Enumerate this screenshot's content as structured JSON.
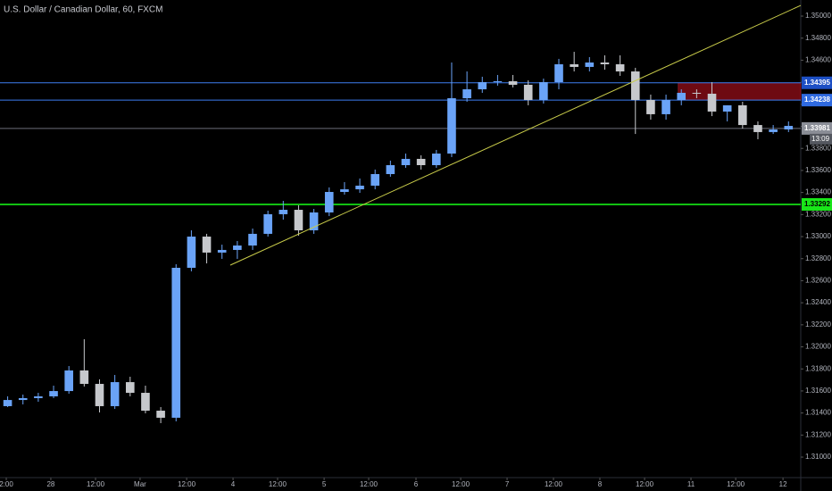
{
  "chart_data": {
    "type": "candlestick",
    "title": "U.S. Dollar / Canadian Dollar, 60, FXCM",
    "up_color": "#6aa3f7",
    "down_color": "#c6c8cc",
    "ylim": [
      1.30814,
      1.35146
    ],
    "xlim": [
      -0.5,
      51.8
    ],
    "yticks": [
      {
        "value": 1.35,
        "label": "1.35000"
      },
      {
        "value": 1.348,
        "label": "1.34800"
      },
      {
        "value": 1.346,
        "label": "1.34600"
      },
      {
        "value": 1.344,
        "label": "1.34400"
      },
      {
        "value": 1.342,
        "label": "1.34200"
      },
      {
        "value": 1.34,
        "label": "1.34000"
      },
      {
        "value": 1.338,
        "label": "1.33800"
      },
      {
        "value": 1.336,
        "label": "1.33600"
      },
      {
        "value": 1.334,
        "label": "1.33400"
      },
      {
        "value": 1.332,
        "label": "1.33200"
      },
      {
        "value": 1.33,
        "label": "1.33000"
      },
      {
        "value": 1.328,
        "label": "1.32800"
      },
      {
        "value": 1.326,
        "label": "1.32600"
      },
      {
        "value": 1.324,
        "label": "1.32400"
      },
      {
        "value": 1.322,
        "label": "1.32200"
      },
      {
        "value": 1.32,
        "label": "1.32000"
      },
      {
        "value": 1.318,
        "label": "1.31800"
      },
      {
        "value": 1.316,
        "label": "1.31600"
      },
      {
        "value": 1.314,
        "label": "1.31400"
      },
      {
        "value": 1.312,
        "label": "1.31200"
      },
      {
        "value": 1.31,
        "label": "1.31000"
      }
    ],
    "xticks": [
      {
        "value": -0.09,
        "label": "2:00"
      },
      {
        "value": 2.82,
        "label": "28"
      },
      {
        "value": 5.74,
        "label": "12:00"
      },
      {
        "value": 8.65,
        "label": "Mar"
      },
      {
        "value": 11.69,
        "label": "12:00"
      },
      {
        "value": 14.72,
        "label": "4"
      },
      {
        "value": 17.63,
        "label": "12:00"
      },
      {
        "value": 20.67,
        "label": "5"
      },
      {
        "value": 23.58,
        "label": "12:00"
      },
      {
        "value": 26.67,
        "label": "6"
      },
      {
        "value": 29.59,
        "label": "12:00"
      },
      {
        "value": 32.62,
        "label": "7"
      },
      {
        "value": 35.65,
        "label": "12:00"
      },
      {
        "value": 38.68,
        "label": "8"
      },
      {
        "value": 41.6,
        "label": "12:00"
      },
      {
        "value": 44.63,
        "label": "11"
      },
      {
        "value": 47.55,
        "label": "12:00"
      },
      {
        "value": 50.64,
        "label": "12"
      }
    ],
    "ohlc": [
      [
        1.31462,
        1.31551,
        1.31454,
        1.31518
      ],
      [
        1.31518,
        1.31567,
        1.31478,
        1.31535
      ],
      [
        1.31535,
        1.31583,
        1.31502,
        1.31551
      ],
      [
        1.31551,
        1.31648,
        1.31535,
        1.31599
      ],
      [
        1.31599,
        1.31826,
        1.31575,
        1.31786
      ],
      [
        1.31786,
        1.32069,
        1.3164,
        1.31664
      ],
      [
        1.31664,
        1.31705,
        1.31405,
        1.31462
      ],
      [
        1.31462,
        1.31745,
        1.31437,
        1.3168
      ],
      [
        1.3168,
        1.31729,
        1.31551,
        1.31583
      ],
      [
        1.31583,
        1.31648,
        1.31397,
        1.31421
      ],
      [
        1.31421,
        1.31454,
        1.31308,
        1.31357
      ],
      [
        1.31357,
        1.32749,
        1.31324,
        1.32717
      ],
      [
        1.32717,
        1.33057,
        1.32685,
        1.33
      ],
      [
        1.33,
        1.33025,
        1.32757,
        1.32855
      ],
      [
        1.32855,
        1.32927,
        1.32798,
        1.32879
      ],
      [
        1.32879,
        1.3296,
        1.32798,
        1.32919
      ],
      [
        1.32919,
        1.33073,
        1.32879,
        1.33025
      ],
      [
        1.33025,
        1.33235,
        1.33,
        1.33203
      ],
      [
        1.33203,
        1.33324,
        1.33154,
        1.33243
      ],
      [
        1.33243,
        1.33284,
        1.33008,
        1.33057
      ],
      [
        1.33057,
        1.33251,
        1.33025,
        1.33219
      ],
      [
        1.33219,
        1.33446,
        1.33186,
        1.33405
      ],
      [
        1.33405,
        1.33494,
        1.33381,
        1.33429
      ],
      [
        1.33429,
        1.33527,
        1.33397,
        1.33462
      ],
      [
        1.33462,
        1.33608,
        1.33429,
        1.33567
      ],
      [
        1.33567,
        1.33689,
        1.33543,
        1.33648
      ],
      [
        1.33648,
        1.33753,
        1.33624,
        1.33705
      ],
      [
        1.33705,
        1.33737,
        1.33608,
        1.33648
      ],
      [
        1.33648,
        1.33786,
        1.33624,
        1.33753
      ],
      [
        1.33753,
        1.34579,
        1.33721,
        1.34255
      ],
      [
        1.34255,
        1.34498,
        1.34223,
        1.34336
      ],
      [
        1.34336,
        1.3445,
        1.34304,
        1.34401
      ],
      [
        1.34401,
        1.34466,
        1.34369,
        1.34409
      ],
      [
        1.34409,
        1.34466,
        1.34353,
        1.34377
      ],
      [
        1.34377,
        1.34417,
        1.34191,
        1.34239
      ],
      [
        1.34239,
        1.34433,
        1.34207,
        1.34401
      ],
      [
        1.34401,
        1.34612,
        1.34336,
        1.34563
      ],
      [
        1.34563,
        1.34676,
        1.34498,
        1.34539
      ],
      [
        1.34539,
        1.34628,
        1.34498,
        1.34579
      ],
      [
        1.34579,
        1.34644,
        1.34514,
        1.34563
      ],
      [
        1.34563,
        1.34644,
        1.34458,
        1.34498
      ],
      [
        1.34498,
        1.34531,
        1.33931,
        1.34239
      ],
      [
        1.34239,
        1.34288,
        1.34061,
        1.3411
      ],
      [
        1.3411,
        1.34288,
        1.34061,
        1.34239
      ],
      [
        1.34239,
        1.34336,
        1.34191,
        1.34304
      ],
      [
        1.34304,
        1.34336,
        1.34255,
        1.34296
      ],
      [
        1.34296,
        1.34401,
        1.34093,
        1.34134
      ],
      [
        1.34134,
        1.34191,
        1.34045,
        1.34191
      ],
      [
        1.34191,
        1.34223,
        1.3398,
        1.34012
      ],
      [
        1.34012,
        1.34045,
        1.33883,
        1.33948
      ],
      [
        1.33948,
        1.34012,
        1.33931,
        1.33972
      ],
      [
        1.33972,
        1.34045,
        1.33948,
        1.34004
      ]
    ],
    "levels": [
      {
        "value": 1.34395,
        "color": "#3d7df0",
        "tag_color": "#1d4fc4"
      },
      {
        "value": 1.34238,
        "color": "#3d7df0",
        "tag_color": "#2f6ae0"
      },
      {
        "value": 1.33981,
        "color": "#6b6e78",
        "tag_color": "#8a8d96"
      },
      {
        "value": 1.33292,
        "color": "#19ff19",
        "tag_color": "#19e619"
      }
    ],
    "countdown": "13:09",
    "trendline": {
      "x": [
        14.54,
        51.8
      ],
      "y": [
        1.32741,
        1.35097
      ],
      "color": "#c9cc4a"
    },
    "zone": {
      "x": [
        43.8,
        51.8
      ],
      "y": [
        1.34238,
        1.34395
      ],
      "color": "#6e0a12"
    }
  }
}
